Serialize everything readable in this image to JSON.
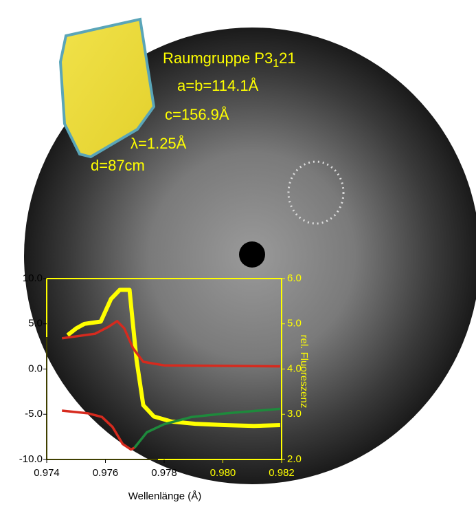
{
  "chart_data": {
    "type": "line",
    "annotations": {
      "space_group": "Raumgruppe P3",
      "space_group_sub": "1",
      "space_group_end": "21",
      "cell_ab": "a=b=114.1Å",
      "cell_c": "c=156.9Å",
      "wavelength": "λ=1.25Å",
      "distance": "d=87cm"
    },
    "xlabel": "Wellenlänge (Å)",
    "y2label": "rel. Fluoreszenz",
    "xlim": [
      0.974,
      0.982
    ],
    "xticks": [
      0.974,
      0.976,
      0.978,
      {
        "value": 0.98,
        "label": "0.980"
      },
      0.982
    ],
    "ylim": [
      -10,
      10
    ],
    "yticks": [
      {
        "value": -10,
        "label": "-10.0"
      },
      {
        "value": -5,
        "label": "-5.0"
      },
      {
        "value": 0,
        "label": "0.0"
      },
      {
        "value": 5,
        "label": "5.0"
      },
      {
        "value": 10,
        "label": "10.0"
      }
    ],
    "y2lim": [
      2,
      6
    ],
    "y2ticks": [
      {
        "value": 2,
        "label": "2.0"
      },
      {
        "value": 3,
        "label": "3.0"
      },
      {
        "value": 4,
        "label": "4.0"
      },
      {
        "value": 5,
        "label": "5.0"
      },
      {
        "value": 6,
        "label": "6.0"
      }
    ],
    "series": [
      {
        "color": "#ffff00",
        "axis": "y2",
        "x": [
          0.97471,
          0.97501,
          0.97529,
          0.97584,
          0.97619,
          0.97649,
          0.97682,
          0.97689,
          0.97706,
          0.97729,
          0.97765,
          0.97824,
          0.97906,
          0.98005,
          0.98106,
          0.98195
        ],
        "values": [
          4.75,
          4.9,
          5.0,
          5.05,
          5.55,
          5.75,
          5.75,
          5.3,
          4.2,
          3.2,
          2.95,
          2.84,
          2.79,
          2.76,
          2.74,
          2.76
        ]
      },
      {
        "color": "#d62a1e",
        "x": [
          0.97452,
          0.97565,
          0.97612,
          0.9764,
          0.97664,
          0.97694,
          0.97729,
          0.978,
          0.98195
        ],
        "values": [
          3.4,
          3.9,
          4.7,
          5.3,
          4.5,
          2.3,
          0.8,
          0.4,
          0.3
        ]
      },
      {
        "color": "#d62a1e",
        "x": [
          0.97452,
          0.97541,
          0.97588,
          0.97624,
          0.97659,
          0.97687,
          0.97699
        ],
        "values": [
          -4.6,
          -4.9,
          -5.3,
          -6.4,
          -8.3,
          -8.9,
          -8.7
        ]
      },
      {
        "color": "#1e8a3c",
        "x": [
          0.97699,
          0.97741,
          0.978,
          0.97894,
          0.98012,
          0.98195
        ],
        "values": [
          -8.7,
          -7.0,
          -6.1,
          -5.3,
          -4.9,
          -4.4
        ]
      }
    ]
  }
}
